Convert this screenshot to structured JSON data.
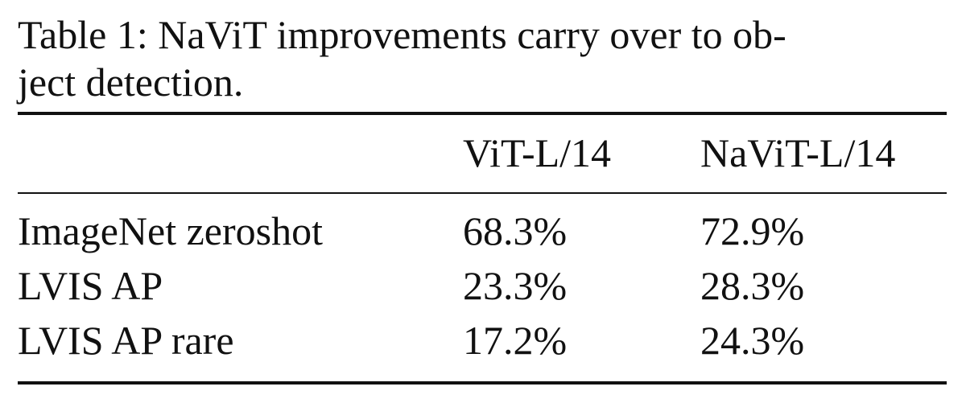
{
  "caption": {
    "lines": [
      "Table 1: NaViT improvements carry over to ob-",
      "ject detection."
    ]
  },
  "table": {
    "columns": [
      "ViT-L/14",
      "NaViT-L/14"
    ],
    "rows": [
      {
        "label": "ImageNet zeroshot",
        "cells": [
          "68.3%",
          "72.9%"
        ]
      },
      {
        "label": "LVIS AP",
        "cells": [
          "23.3%",
          "28.3%"
        ]
      },
      {
        "label": "LVIS AP rare",
        "cells": [
          "17.2%",
          "24.3%"
        ]
      }
    ]
  }
}
